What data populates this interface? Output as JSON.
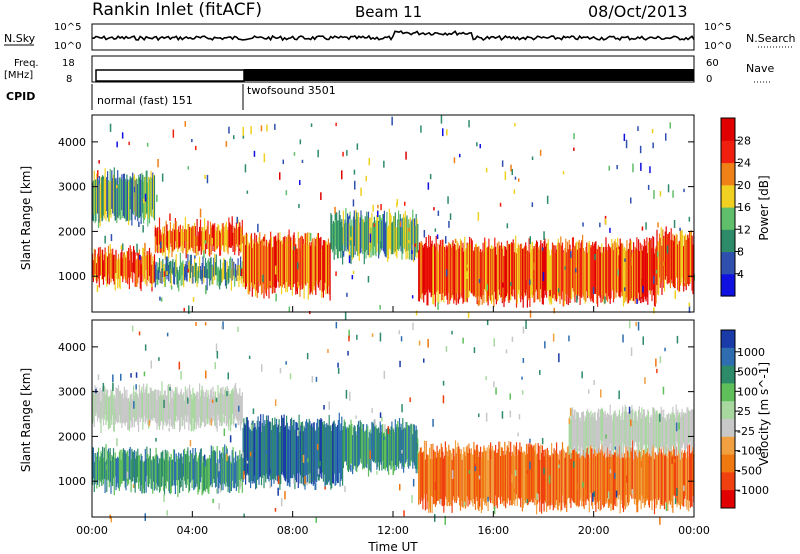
{
  "header": {
    "station": "Rankin Inlet (fitACF)",
    "beam": "Beam 11",
    "date": "08/Oct/2013"
  },
  "strips": {
    "nsky_label": "N.Sky",
    "nsky_ticks": [
      "10^5",
      "10^0"
    ],
    "nsearch_label": "N.Search",
    "nsearch_ticks": [
      "10^5",
      "10^0"
    ],
    "freq_label": "Freq.",
    "freq_unit": "[MHz]",
    "freq_ticks": [
      "18",
      "8"
    ],
    "nave_label": "Nave",
    "nave_ticks": [
      "60",
      "0"
    ],
    "cpid_label": "CPID",
    "cpid_modes": [
      {
        "name": "normal (fast) 151",
        "start": "00:00",
        "end": "06:00"
      },
      {
        "name": "twofsound 3501",
        "start": "06:00",
        "end": "24:00"
      }
    ]
  },
  "chart_data": [
    {
      "type": "heatmap",
      "name": "power",
      "ylabel": "Slant Range [km]",
      "y_ticks": [
        1000,
        2000,
        3000,
        4000
      ],
      "ylim": [
        200,
        4600
      ],
      "xlim": [
        "00:00",
        "24:00"
      ],
      "colorbar_label": "Power [dB]",
      "colorbar_ticks": [
        4,
        8,
        12,
        16,
        20,
        24,
        28
      ],
      "colorbar_colors": [
        "#1010e0",
        "#3050b0",
        "#2e8b6a",
        "#5fbf6a",
        "#f0d020",
        "#f08018",
        "#f02010",
        "#e00000"
      ],
      "bands": [
        {
          "t_start": 0.0,
          "t_end": 2.5,
          "range_low": 900,
          "range_high": 1500,
          "level": "high"
        },
        {
          "t_start": 0.0,
          "t_end": 2.5,
          "range_low": 2300,
          "range_high": 3200,
          "level": "mid"
        },
        {
          "t_start": 2.5,
          "t_end": 6.0,
          "range_low": 1600,
          "range_high": 2100,
          "level": "high"
        },
        {
          "t_start": 2.5,
          "t_end": 6.0,
          "range_low": 900,
          "range_high": 1300,
          "level": "mid"
        },
        {
          "t_start": 6.0,
          "t_end": 9.5,
          "range_low": 700,
          "range_high": 1800,
          "level": "high"
        },
        {
          "t_start": 9.5,
          "t_end": 13.0,
          "range_low": 1500,
          "range_high": 2300,
          "level": "mid"
        },
        {
          "t_start": 13.0,
          "t_end": 22.5,
          "range_low": 500,
          "range_high": 1700,
          "level": "high"
        },
        {
          "t_start": 22.5,
          "t_end": 24.0,
          "range_low": 800,
          "range_high": 1900,
          "level": "high"
        }
      ]
    },
    {
      "type": "heatmap",
      "name": "velocity",
      "ylabel": "Slant Range [km]",
      "xlabel": "Time UT",
      "x_ticks": [
        "00:00",
        "04:00",
        "08:00",
        "12:00",
        "16:00",
        "20:00",
        "00:00"
      ],
      "y_ticks": [
        1000,
        2000,
        3000,
        4000
      ],
      "ylim": [
        200,
        4600
      ],
      "xlim": [
        "00:00",
        "24:00"
      ],
      "colorbar_label": "Velocity [m s^-1]",
      "colorbar_ticks": [
        1000,
        500,
        100,
        25,
        -25,
        -100,
        -500,
        -1000
      ],
      "colorbar_colors": [
        "#1a3aa8",
        "#2e6eb0",
        "#2e8b6a",
        "#5fbf5a",
        "#a8d8a0",
        "#c8c8c8",
        "#f0a040",
        "#f07810",
        "#f04010",
        "#e00000"
      ],
      "bands": [
        {
          "t_start": 0.0,
          "t_end": 6.0,
          "range_low": 2300,
          "range_high": 3000,
          "level": "ground"
        },
        {
          "t_start": 0.0,
          "t_end": 6.0,
          "range_low": 900,
          "range_high": 1600,
          "level": "toward_low"
        },
        {
          "t_start": 6.0,
          "t_end": 10.0,
          "range_low": 1000,
          "range_high": 2300,
          "level": "toward_high"
        },
        {
          "t_start": 10.0,
          "t_end": 13.0,
          "range_low": 1300,
          "range_high": 2200,
          "level": "toward_low"
        },
        {
          "t_start": 13.0,
          "t_end": 24.0,
          "range_low": 500,
          "range_high": 1700,
          "level": "away"
        },
        {
          "t_start": 19.0,
          "t_end": 24.0,
          "range_low": 1700,
          "range_high": 2500,
          "level": "ground"
        }
      ]
    }
  ]
}
